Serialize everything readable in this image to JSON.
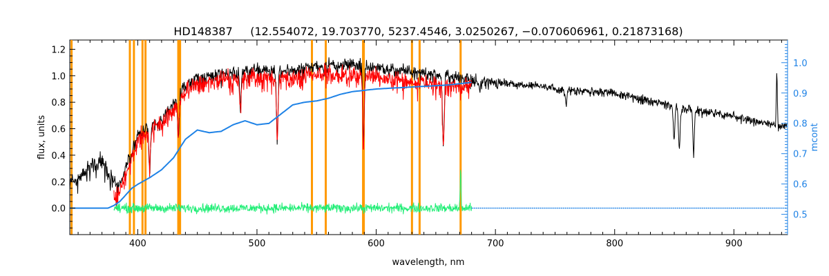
{
  "chart_data": {
    "type": "line",
    "title": "HD148387     (12.554072, 19.703770, 5237.4546, 3.0250267, −0.070606961, 0.21873168)",
    "xlabel": "wavelength, nm",
    "ylabel": "flux, units",
    "y2label": "mcont",
    "xlim": [
      343,
      945
    ],
    "ylim": [
      -0.2,
      1.27
    ],
    "y2lim": [
      0.4332,
      1.0746
    ],
    "x_ticks": [
      400,
      500,
      600,
      700,
      800,
      900
    ],
    "y_ticks": [
      "0.0",
      "0.2",
      "0.4",
      "0.6",
      "0.8",
      "1.0",
      "1.2"
    ],
    "y2_ticks": [
      "0.5",
      "0.6",
      "0.7",
      "0.8",
      "0.9",
      "1.0"
    ],
    "grid": false,
    "legend": "none",
    "colors": {
      "observed": "#000000",
      "model": "#ff0000",
      "continuum": "#1e82e6",
      "residual": "#22ee77",
      "lines": "#ff9900",
      "axis2": "#1e82e6"
    },
    "vertical_lines": [
      344.5,
      393.4,
      396.8,
      404.0,
      406.5,
      434.0,
      435.5,
      546.1,
      557.7,
      589.0,
      589.6,
      630.0,
      636.4,
      670.8
    ],
    "series": [
      {
        "id": "observed",
        "axis": "left",
        "x": [
          343,
          350,
          360,
          366,
          372,
          378,
          383,
          388,
          395,
          400,
          410,
          420,
          430,
          440,
          450,
          460,
          470,
          480,
          490,
          500,
          510,
          520,
          530,
          540,
          550,
          560,
          570,
          580,
          590,
          600,
          620,
          640,
          660,
          680,
          700,
          720,
          740,
          760,
          780,
          800,
          820,
          840,
          860,
          880,
          900,
          920,
          930,
          945
        ],
        "y": [
          0.21,
          0.24,
          0.32,
          0.36,
          0.34,
          0.27,
          0.15,
          0.27,
          0.42,
          0.56,
          0.63,
          0.67,
          0.8,
          0.94,
          0.99,
          1.01,
          1.02,
          1.03,
          1.04,
          1.05,
          1.05,
          1.04,
          1.06,
          1.07,
          1.08,
          1.09,
          1.09,
          1.09,
          1.08,
          1.07,
          1.05,
          1.03,
          1.01,
          0.98,
          0.96,
          0.94,
          0.92,
          0.9,
          0.89,
          0.87,
          0.84,
          0.8,
          0.76,
          0.73,
          0.7,
          0.66,
          0.64,
          0.62
        ]
      },
      {
        "id": "model",
        "axis": "left",
        "x": [
          380,
          385,
          390,
          395,
          400,
          410,
          420,
          430,
          440,
          450,
          460,
          470,
          480,
          490,
          500,
          510,
          520,
          530,
          540,
          550,
          560,
          570,
          580,
          590,
          600,
          620,
          640,
          660,
          680
        ],
        "y": [
          0.1,
          0.15,
          0.26,
          0.4,
          0.53,
          0.6,
          0.64,
          0.76,
          0.9,
          0.94,
          0.96,
          0.98,
          0.98,
          0.99,
          1.0,
          0.99,
          0.98,
          1.0,
          1.01,
          1.02,
          1.03,
          1.02,
          1.03,
          1.02,
          1.01,
          0.98,
          0.96,
          0.94,
          0.94
        ]
      },
      {
        "id": "continuum",
        "axis": "left",
        "x": [
          343,
          375,
          380,
          385,
          390,
          395,
          400,
          410,
          420,
          430,
          440,
          450,
          460,
          470,
          480,
          490,
          500,
          510,
          520,
          530,
          540,
          550,
          560,
          570,
          580,
          590,
          600,
          620,
          640,
          660,
          680
        ],
        "y": [
          0.0,
          0.0,
          0.02,
          0.05,
          0.1,
          0.15,
          0.18,
          0.23,
          0.29,
          0.38,
          0.52,
          0.59,
          0.57,
          0.58,
          0.63,
          0.66,
          0.63,
          0.64,
          0.71,
          0.78,
          0.8,
          0.81,
          0.83,
          0.86,
          0.88,
          0.89,
          0.9,
          0.91,
          0.92,
          0.93,
          0.95
        ]
      },
      {
        "id": "residual",
        "axis": "left",
        "x_range": [
          380,
          680
        ],
        "baseline": 0.0,
        "typical_amplitude": 0.05,
        "spike_x": 670.8,
        "spike_y": 0.3
      }
    ],
    "absorption_lines": [
      {
        "x": 410.0,
        "depth": 0.55
      },
      {
        "x": 434.0,
        "depth": 0.35
      },
      {
        "x": 486.1,
        "depth": 0.25
      },
      {
        "x": 517.0,
        "depth": 0.5
      },
      {
        "x": 589.3,
        "depth": 0.55
      },
      {
        "x": 656.3,
        "depth": 0.55
      },
      {
        "x": 686.9,
        "depth": 0.1
      },
      {
        "x": 759.4,
        "depth": 0.12
      },
      {
        "x": 849.8,
        "depth": 0.35
      },
      {
        "x": 854.2,
        "depth": 0.4
      },
      {
        "x": 866.2,
        "depth": 0.42
      }
    ],
    "emission_spikes": [
      {
        "x": 936.0,
        "y": 1.03
      }
    ]
  }
}
